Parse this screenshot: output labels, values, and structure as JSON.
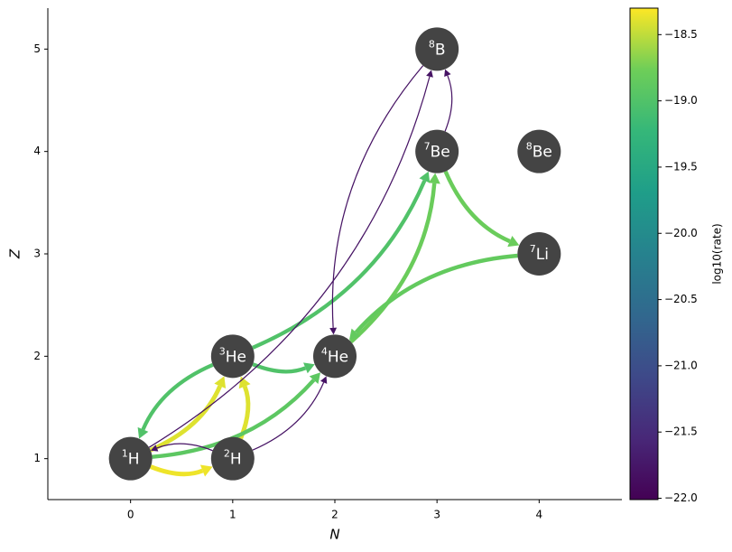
{
  "chart_data": {
    "type": "network",
    "xlabel": "N",
    "ylabel": "Z",
    "xlim": [
      -0.81,
      4.81
    ],
    "ylim": [
      0.6,
      5.4
    ],
    "xticks": [
      0,
      1,
      2,
      3,
      4
    ],
    "yticks": [
      1,
      2,
      3,
      4,
      5
    ],
    "node_color": "#444444",
    "nodes": [
      {
        "mass": "1",
        "symbol": "H",
        "N": 0,
        "Z": 1
      },
      {
        "mass": "2",
        "symbol": "H",
        "N": 1,
        "Z": 1
      },
      {
        "mass": "3",
        "symbol": "He",
        "N": 1,
        "Z": 2
      },
      {
        "mass": "4",
        "symbol": "He",
        "N": 2,
        "Z": 2
      },
      {
        "mass": "7",
        "symbol": "Li",
        "N": 4,
        "Z": 3
      },
      {
        "mass": "7",
        "symbol": "Be",
        "N": 3,
        "Z": 4
      },
      {
        "mass": "8",
        "symbol": "Be",
        "N": 4,
        "Z": 4
      },
      {
        "mass": "8",
        "symbol": "B",
        "N": 3,
        "Z": 5
      }
    ],
    "edges": [
      {
        "from": 0,
        "to": 1,
        "value": -18.35
      },
      {
        "from": 0,
        "to": 2,
        "value": -18.4
      },
      {
        "from": 1,
        "to": 2,
        "value": -18.4
      },
      {
        "from": 2,
        "to": 3,
        "value": -19.0
      },
      {
        "from": 2,
        "to": 0,
        "value": -19.0
      },
      {
        "from": 2,
        "to": 5,
        "value": -19.0
      },
      {
        "from": 3,
        "to": 5,
        "value": -18.8
      },
      {
        "from": 5,
        "to": 4,
        "value": -18.8
      },
      {
        "from": 4,
        "to": 3,
        "value": -18.85
      },
      {
        "from": 0,
        "to": 3,
        "value": -18.9
      },
      {
        "from": 5,
        "to": 7,
        "value": -21.8
      },
      {
        "from": 0,
        "to": 7,
        "value": -21.8
      },
      {
        "from": 7,
        "to": 3,
        "value": -21.8
      },
      {
        "from": 1,
        "to": 3,
        "value": -21.8
      },
      {
        "from": 1,
        "to": 0,
        "value": -21.8
      }
    ],
    "colorbar": {
      "label": "log10(rate)",
      "lim": [
        -22.01,
        -18.3
      ],
      "ticks": [
        {
          "value": -18.5,
          "label": "−18.5"
        },
        {
          "value": -19.0,
          "label": "−19.0"
        },
        {
          "value": -19.5,
          "label": "−19.5"
        },
        {
          "value": -20.0,
          "label": "−20.0"
        },
        {
          "value": -20.5,
          "label": "−20.5"
        },
        {
          "value": -21.0,
          "label": "−21.0"
        },
        {
          "value": -21.5,
          "label": "−21.5"
        },
        {
          "value": -22.0,
          "label": "−22.0"
        }
      ]
    }
  }
}
